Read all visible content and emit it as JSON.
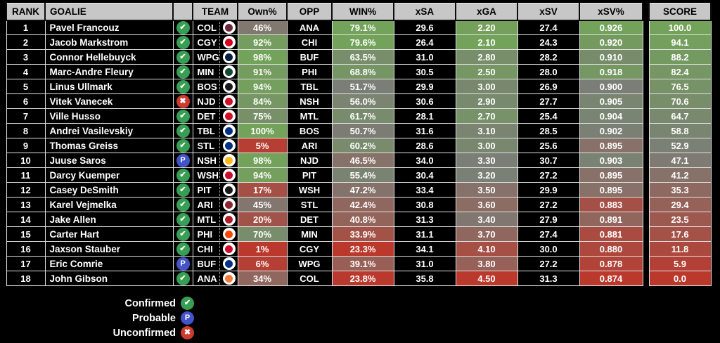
{
  "chart_data": {
    "type": "table",
    "columns": [
      "RANK",
      "GOALIE",
      "",
      "TEAM",
      "Own%",
      "OPP",
      "WIN%",
      "xSA",
      "xGA",
      "xSV",
      "xSV%",
      "SCORE"
    ],
    "rows": [
      {
        "rank": "1",
        "goalie": "Pavel Francouz",
        "status": "confirmed",
        "team": "COL",
        "own_pct": "46%",
        "opp": "ANA",
        "win_pct": "79.1%",
        "xsa": "29.6",
        "xga": "2.20",
        "xsv": "27.4",
        "xsv_pct": "0.926",
        "score": "100.0"
      },
      {
        "rank": "2",
        "goalie": "Jacob Markstrom",
        "status": "confirmed",
        "team": "CGY",
        "own_pct": "92%",
        "opp": "CHI",
        "win_pct": "79.6%",
        "xsa": "26.4",
        "xga": "2.10",
        "xsv": "24.3",
        "xsv_pct": "0.920",
        "score": "94.1"
      },
      {
        "rank": "3",
        "goalie": "Connor Hellebuyck",
        "status": "confirmed",
        "team": "WPG",
        "own_pct": "98%",
        "opp": "BUF",
        "win_pct": "63.5%",
        "xsa": "31.0",
        "xga": "2.80",
        "xsv": "28.2",
        "xsv_pct": "0.910",
        "score": "88.2"
      },
      {
        "rank": "4",
        "goalie": "Marc-Andre Fleury",
        "status": "confirmed",
        "team": "MIN",
        "own_pct": "91%",
        "opp": "PHI",
        "win_pct": "68.8%",
        "xsa": "30.5",
        "xga": "2.50",
        "xsv": "28.0",
        "xsv_pct": "0.918",
        "score": "82.4"
      },
      {
        "rank": "5",
        "goalie": "Linus Ullmark",
        "status": "confirmed",
        "team": "BOS",
        "own_pct": "94%",
        "opp": "TBL",
        "win_pct": "51.7%",
        "xsa": "29.9",
        "xga": "3.00",
        "xsv": "26.9",
        "xsv_pct": "0.900",
        "score": "76.5"
      },
      {
        "rank": "6",
        "goalie": "Vitek Vanecek",
        "status": "unconfirmed",
        "team": "NJD",
        "own_pct": "84%",
        "opp": "NSH",
        "win_pct": "56.0%",
        "xsa": "30.6",
        "xga": "2.90",
        "xsv": "27.7",
        "xsv_pct": "0.905",
        "score": "70.6"
      },
      {
        "rank": "7",
        "goalie": "Ville Husso",
        "status": "confirmed",
        "team": "DET",
        "own_pct": "75%",
        "opp": "MTL",
        "win_pct": "61.7%",
        "xsa": "28.1",
        "xga": "2.70",
        "xsv": "25.4",
        "xsv_pct": "0.904",
        "score": "64.7"
      },
      {
        "rank": "8",
        "goalie": "Andrei Vasilevskiy",
        "status": "confirmed",
        "team": "TBL",
        "own_pct": "100%",
        "opp": "BOS",
        "win_pct": "50.7%",
        "xsa": "31.6",
        "xga": "3.10",
        "xsv": "28.5",
        "xsv_pct": "0.902",
        "score": "58.8"
      },
      {
        "rank": "9",
        "goalie": "Thomas Greiss",
        "status": "confirmed",
        "team": "STL",
        "own_pct": "5%",
        "opp": "ARI",
        "win_pct": "60.2%",
        "xsa": "28.6",
        "xga": "3.00",
        "xsv": "25.6",
        "xsv_pct": "0.895",
        "score": "52.9"
      },
      {
        "rank": "10",
        "goalie": "Juuse Saros",
        "status": "probable",
        "team": "NSH",
        "own_pct": "98%",
        "opp": "NJD",
        "win_pct": "46.5%",
        "xsa": "34.0",
        "xga": "3.30",
        "xsv": "30.7",
        "xsv_pct": "0.903",
        "score": "47.1"
      },
      {
        "rank": "11",
        "goalie": "Darcy Kuemper",
        "status": "confirmed",
        "team": "WSH",
        "own_pct": "94%",
        "opp": "PIT",
        "win_pct": "55.4%",
        "xsa": "30.4",
        "xga": "3.20",
        "xsv": "27.2",
        "xsv_pct": "0.895",
        "score": "41.2"
      },
      {
        "rank": "12",
        "goalie": "Casey DeSmith",
        "status": "confirmed",
        "team": "PIT",
        "own_pct": "17%",
        "opp": "WSH",
        "win_pct": "47.2%",
        "xsa": "33.4",
        "xga": "3.50",
        "xsv": "29.9",
        "xsv_pct": "0.895",
        "score": "35.3"
      },
      {
        "rank": "13",
        "goalie": "Karel Vejmelka",
        "status": "confirmed",
        "team": "ARI",
        "own_pct": "45%",
        "opp": "STL",
        "win_pct": "42.4%",
        "xsa": "30.8",
        "xga": "3.60",
        "xsv": "27.2",
        "xsv_pct": "0.883",
        "score": "29.4"
      },
      {
        "rank": "14",
        "goalie": "Jake Allen",
        "status": "confirmed",
        "team": "MTL",
        "own_pct": "20%",
        "opp": "DET",
        "win_pct": "40.8%",
        "xsa": "31.3",
        "xga": "3.40",
        "xsv": "27.9",
        "xsv_pct": "0.891",
        "score": "23.5"
      },
      {
        "rank": "15",
        "goalie": "Carter Hart",
        "status": "confirmed",
        "team": "PHI",
        "own_pct": "70%",
        "opp": "MIN",
        "win_pct": "33.9%",
        "xsa": "31.1",
        "xga": "3.70",
        "xsv": "27.4",
        "xsv_pct": "0.881",
        "score": "17.6"
      },
      {
        "rank": "16",
        "goalie": "Jaxson Stauber",
        "status": "confirmed",
        "team": "CHI",
        "own_pct": "1%",
        "opp": "CGY",
        "win_pct": "23.3%",
        "xsa": "34.1",
        "xga": "4.10",
        "xsv": "30.0",
        "xsv_pct": "0.880",
        "score": "11.8"
      },
      {
        "rank": "17",
        "goalie": "Eric Comrie",
        "status": "probable",
        "team": "BUF",
        "own_pct": "6%",
        "opp": "WPG",
        "win_pct": "39.1%",
        "xsa": "31.0",
        "xga": "3.80",
        "xsv": "27.2",
        "xsv_pct": "0.878",
        "score": "5.9"
      },
      {
        "rank": "18",
        "goalie": "John Gibson",
        "status": "confirmed",
        "team": "ANA",
        "own_pct": "34%",
        "opp": "COL",
        "win_pct": "23.8%",
        "xsa": "35.8",
        "xga": "4.50",
        "xsv": "31.3",
        "xsv_pct": "0.874",
        "score": "0.0"
      }
    ],
    "scales": {
      "own_pct": {
        "min": 1,
        "max": 100,
        "invert": false
      },
      "win_pct": {
        "min": 23.3,
        "max": 79.6,
        "invert": false
      },
      "xga": {
        "min": 2.1,
        "max": 4.5,
        "invert": true
      },
      "xsv_pct": {
        "min": 0.874,
        "max": 0.926,
        "invert": false
      },
      "score": {
        "min": 0,
        "max": 100,
        "invert": false
      }
    },
    "gradient": {
      "low": "#BB382D",
      "mid": "#7B7E76",
      "high": "#73A35A"
    },
    "layout_hints": {
      "header_bg": "#C7C7C7",
      "row_bg": "#000000",
      "text": "#FFFFFF"
    }
  },
  "status_glyphs": {
    "confirmed": "✔",
    "probable": "P",
    "unconfirmed": "✖"
  },
  "status_colors": {
    "confirmed": "#389E54",
    "probable": "#4353C9",
    "unconfirmed": "#CD3B31"
  },
  "team_logo_colors": {
    "COL": "#6F263D",
    "CGY": "#D2001C",
    "WPG": "#041E42",
    "MIN": "#154734",
    "BOS": "#1A1A1A",
    "NJD": "#CE1126",
    "DET": "#CE1126",
    "TBL": "#003087",
    "STL": "#002F87",
    "NSH": "#FFB81C",
    "WSH": "#C8102E",
    "PIT": "#1A1A1A",
    "ARI": "#8C2633",
    "MTL": "#AF1E2D",
    "PHI": "#F74902",
    "CHI": "#CF0A2C",
    "BUF": "#003087",
    "ANA": "#F47A38"
  },
  "legend": [
    {
      "label": "Confirmed",
      "status": "confirmed"
    },
    {
      "label": "Probable",
      "status": "probable"
    },
    {
      "label": "Unconfirmed",
      "status": "unconfirmed"
    }
  ]
}
